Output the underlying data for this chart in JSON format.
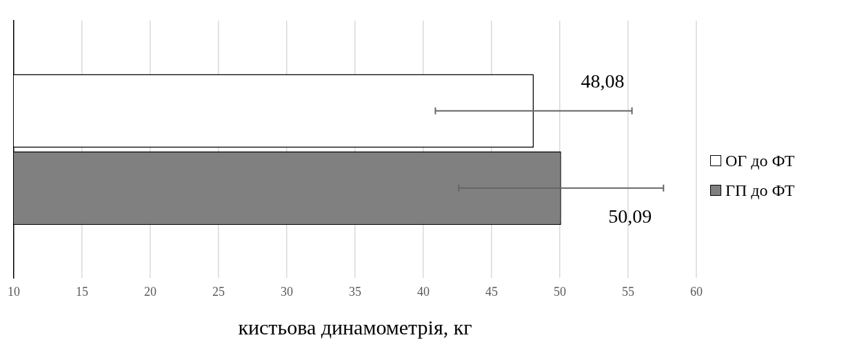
{
  "chart_data": {
    "type": "bar",
    "orientation": "horizontal",
    "xlabel": "кистьова динамометрія, кг",
    "categories": [
      null
    ],
    "series": [
      {
        "name": "ОГ до ФТ",
        "color": "#ffffff",
        "values": [
          48.08
        ],
        "errors": [
          7.2
        ],
        "value_labels": [
          "48,08"
        ]
      },
      {
        "name": "ГП до ФТ",
        "color": "#808080",
        "values": [
          50.09
        ],
        "errors": [
          7.5
        ],
        "value_labels": [
          "50,09"
        ]
      }
    ],
    "xlim": [
      10,
      60
    ],
    "xticks": [
      10,
      15,
      20,
      25,
      30,
      35,
      40,
      45,
      50,
      55,
      60
    ],
    "grid": "x",
    "legend": "right"
  }
}
